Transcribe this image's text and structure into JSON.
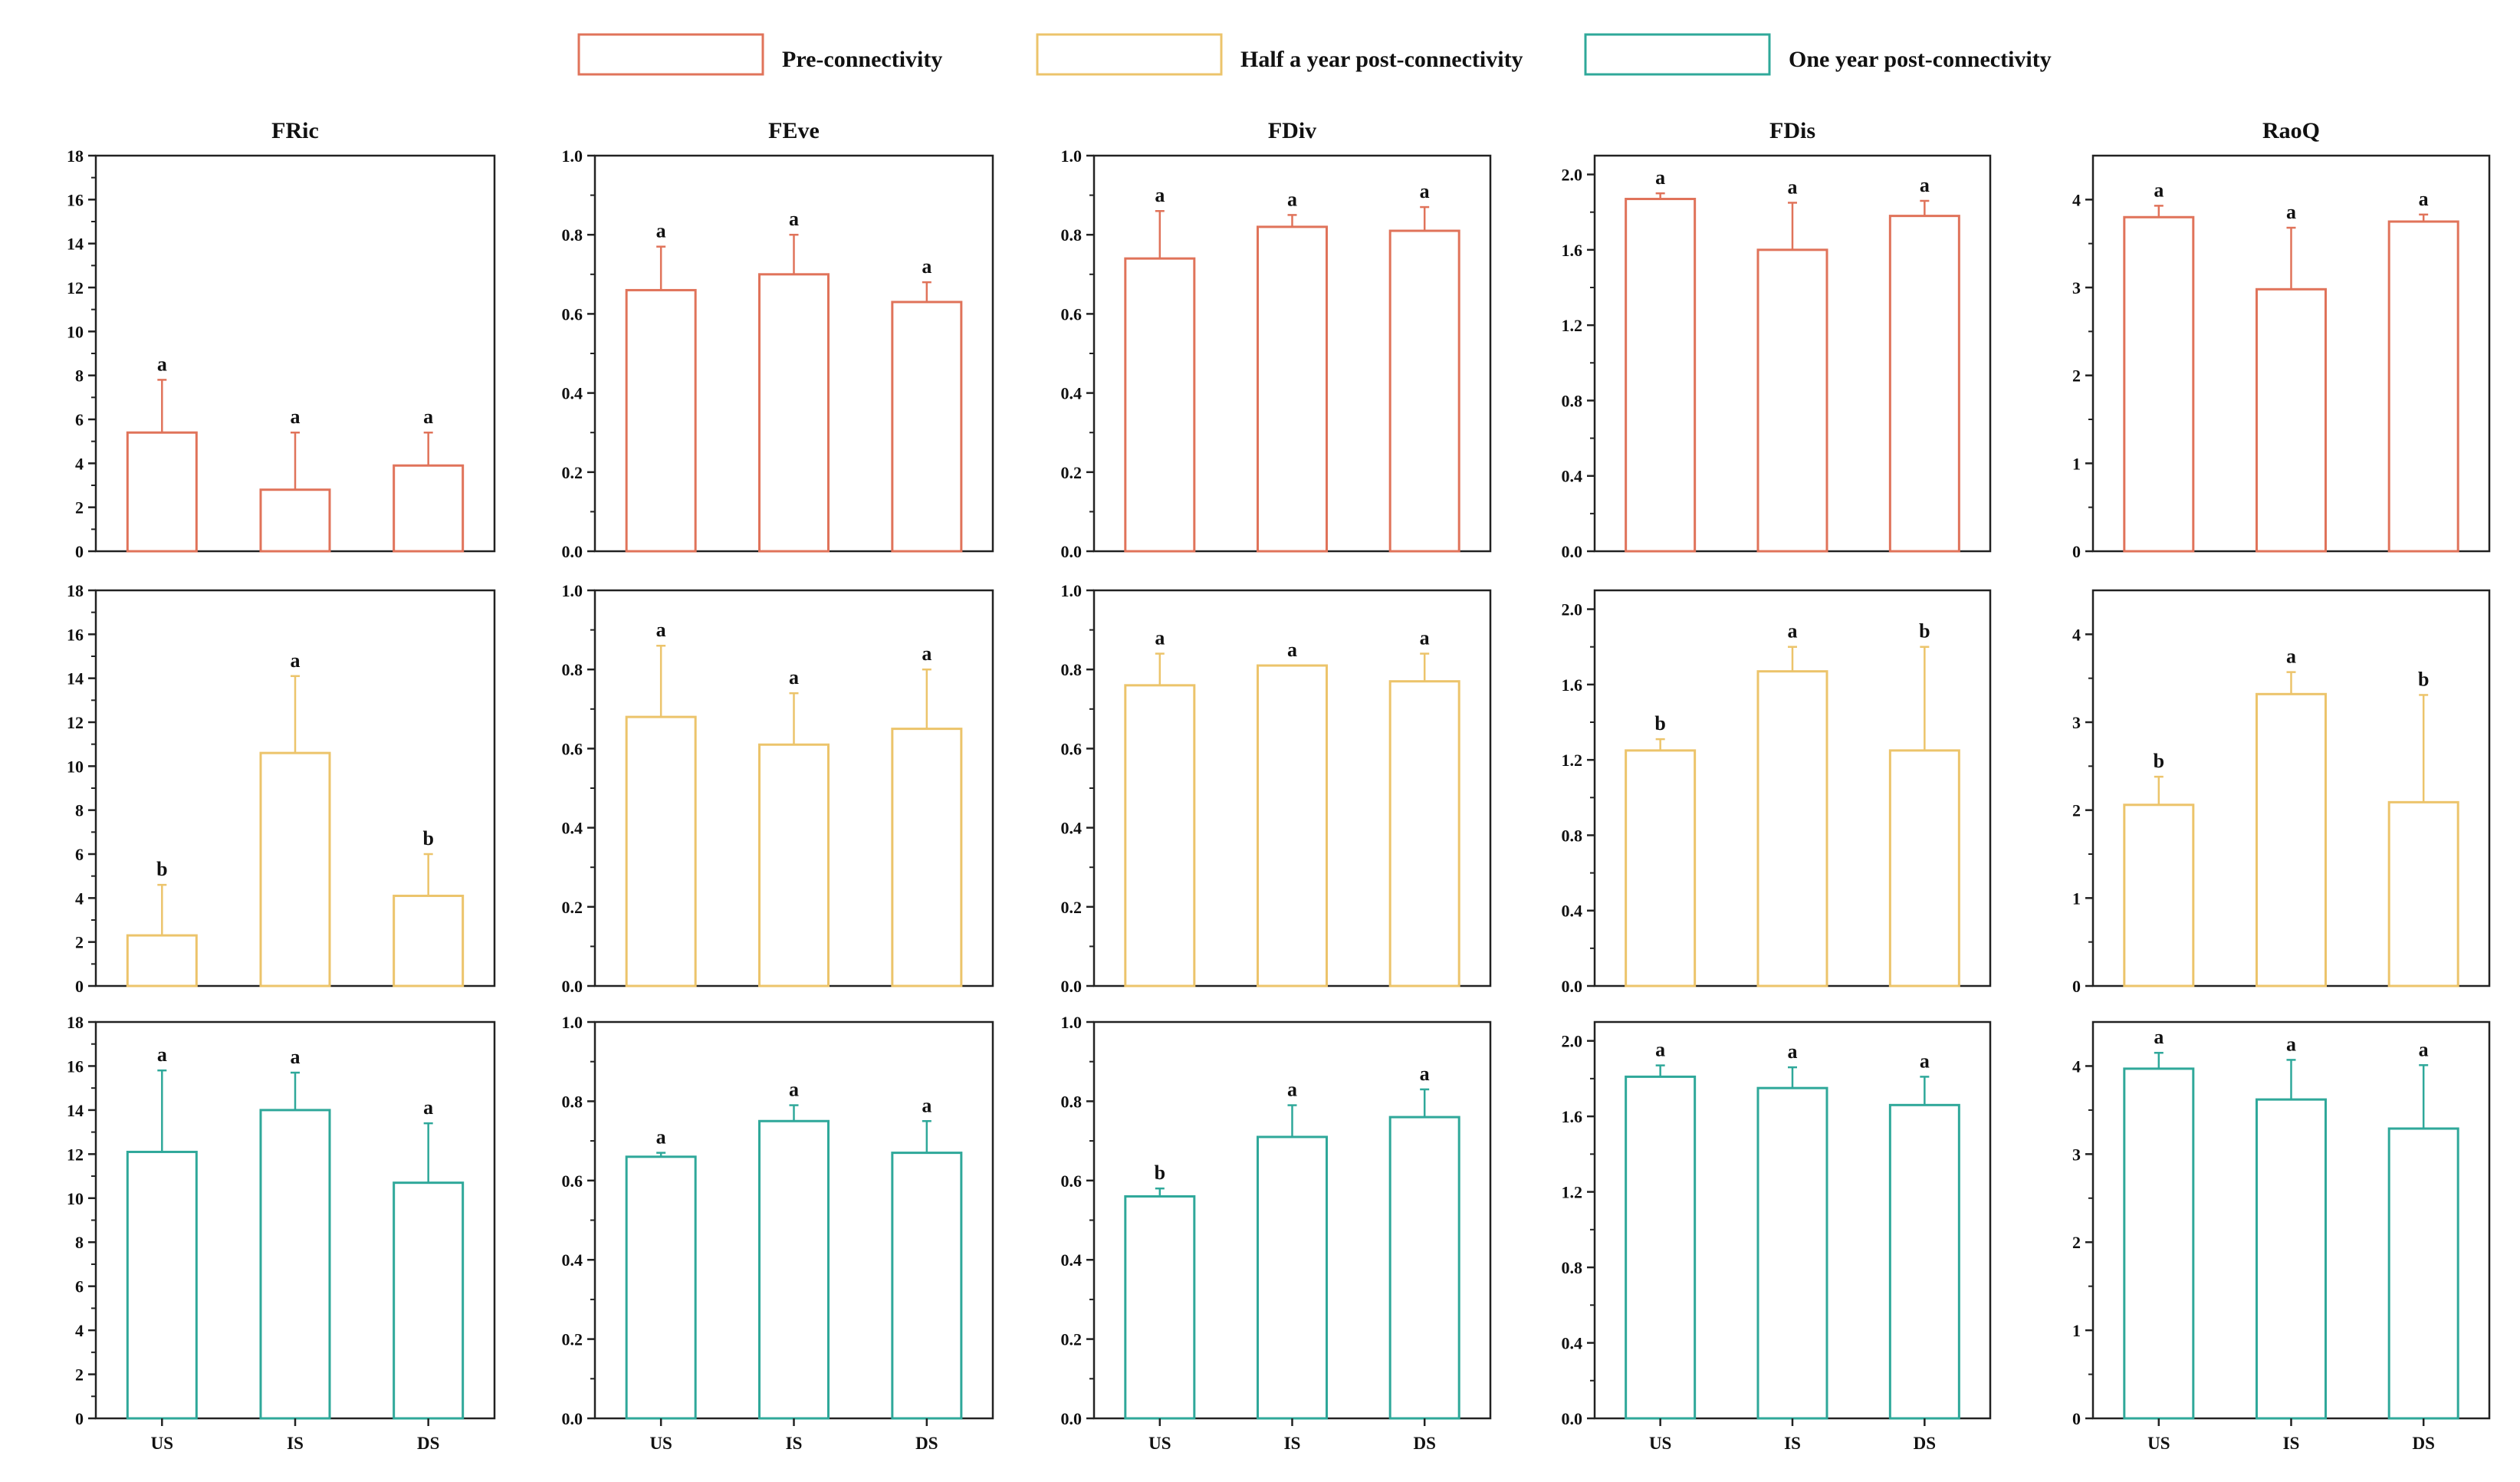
{
  "legend": {
    "items": [
      {
        "label": "Pre-connectivity",
        "color": "#e0735a"
      },
      {
        "label": "Half a year post-connectivity",
        "color": "#ecc46b"
      },
      {
        "label": "One year post-connectivity",
        "color": "#2fa89a"
      }
    ]
  },
  "chart_data": {
    "type": "bar",
    "categories": [
      "US",
      "IS",
      "DS"
    ],
    "columns": [
      {
        "title": "FRic",
        "ylim": [
          0,
          18
        ],
        "yticks": [
          0,
          2,
          4,
          6,
          8,
          10,
          12,
          14,
          16,
          18
        ],
        "tick_format": "int"
      },
      {
        "title": "FEve",
        "ylim": [
          0,
          1.0
        ],
        "yticks": [
          0.0,
          0.2,
          0.4,
          0.6,
          0.8,
          1.0
        ],
        "tick_format": "fixed1"
      },
      {
        "title": "FDiv",
        "ylim": [
          0,
          1.0
        ],
        "yticks": [
          0.0,
          0.2,
          0.4,
          0.6,
          0.8,
          1.0
        ],
        "tick_format": "fixed1"
      },
      {
        "title": "FDis",
        "ylim": [
          0,
          2.1
        ],
        "yticks": [
          0.0,
          0.4,
          0.8,
          1.2,
          1.6,
          2.0
        ],
        "tick_format": "fixed1"
      },
      {
        "title": "RaoQ",
        "ylim": [
          0,
          4.5
        ],
        "yticks": [
          0,
          1,
          2,
          3,
          4
        ],
        "tick_format": "int"
      }
    ],
    "rows": [
      {
        "period": "Pre-connectivity",
        "color": "#e0735a",
        "panels": [
          {
            "values": [
              5.4,
              2.8,
              3.9
            ],
            "errors": [
              2.4,
              2.6,
              1.5
            ],
            "letters": [
              "a",
              "a",
              "a"
            ]
          },
          {
            "values": [
              0.66,
              0.7,
              0.63
            ],
            "errors": [
              0.11,
              0.1,
              0.05
            ],
            "letters": [
              "a",
              "a",
              "a"
            ]
          },
          {
            "values": [
              0.74,
              0.82,
              0.81
            ],
            "errors": [
              0.12,
              0.03,
              0.06
            ],
            "letters": [
              "a",
              "a",
              "a"
            ]
          },
          {
            "values": [
              1.87,
              1.6,
              1.78
            ],
            "errors": [
              0.03,
              0.25,
              0.08
            ],
            "letters": [
              "a",
              "a",
              "a"
            ]
          },
          {
            "values": [
              3.8,
              2.98,
              3.75
            ],
            "errors": [
              0.13,
              0.7,
              0.08
            ],
            "letters": [
              "a",
              "a",
              "a"
            ]
          }
        ]
      },
      {
        "period": "Half a year post-connectivity",
        "color": "#ecc46b",
        "panels": [
          {
            "values": [
              2.3,
              10.6,
              4.1
            ],
            "errors": [
              2.3,
              3.5,
              1.9
            ],
            "letters": [
              "b",
              "a",
              "b"
            ]
          },
          {
            "values": [
              0.68,
              0.61,
              0.65
            ],
            "errors": [
              0.18,
              0.13,
              0.15
            ],
            "letters": [
              "a",
              "a",
              "a"
            ]
          },
          {
            "values": [
              0.76,
              0.81,
              0.77
            ],
            "errors": [
              0.08,
              0.0,
              0.07
            ],
            "letters": [
              "a",
              "a",
              "a"
            ]
          },
          {
            "values": [
              1.25,
              1.67,
              1.25
            ],
            "errors": [
              0.06,
              0.13,
              0.55
            ],
            "letters": [
              "b",
              "a",
              "b"
            ]
          },
          {
            "values": [
              2.06,
              3.32,
              2.09
            ],
            "errors": [
              0.32,
              0.25,
              1.22
            ],
            "letters": [
              "b",
              "a",
              "b"
            ]
          }
        ]
      },
      {
        "period": "One year post-connectivity",
        "color": "#2fa89a",
        "panels": [
          {
            "values": [
              12.1,
              14.0,
              10.7
            ],
            "errors": [
              3.7,
              1.7,
              2.7
            ],
            "letters": [
              "a",
              "a",
              "a"
            ]
          },
          {
            "values": [
              0.66,
              0.75,
              0.67
            ],
            "errors": [
              0.01,
              0.04,
              0.08
            ],
            "letters": [
              "a",
              "a",
              "a"
            ]
          },
          {
            "values": [
              0.56,
              0.71,
              0.76
            ],
            "errors": [
              0.02,
              0.08,
              0.07
            ],
            "letters": [
              "b",
              "a",
              "a"
            ]
          },
          {
            "values": [
              1.81,
              1.75,
              1.66
            ],
            "errors": [
              0.06,
              0.11,
              0.15
            ],
            "letters": [
              "a",
              "a",
              "a"
            ]
          },
          {
            "values": [
              3.97,
              3.62,
              3.29
            ],
            "errors": [
              0.18,
              0.45,
              0.72
            ],
            "letters": [
              "a",
              "a",
              "a"
            ]
          }
        ]
      }
    ]
  }
}
